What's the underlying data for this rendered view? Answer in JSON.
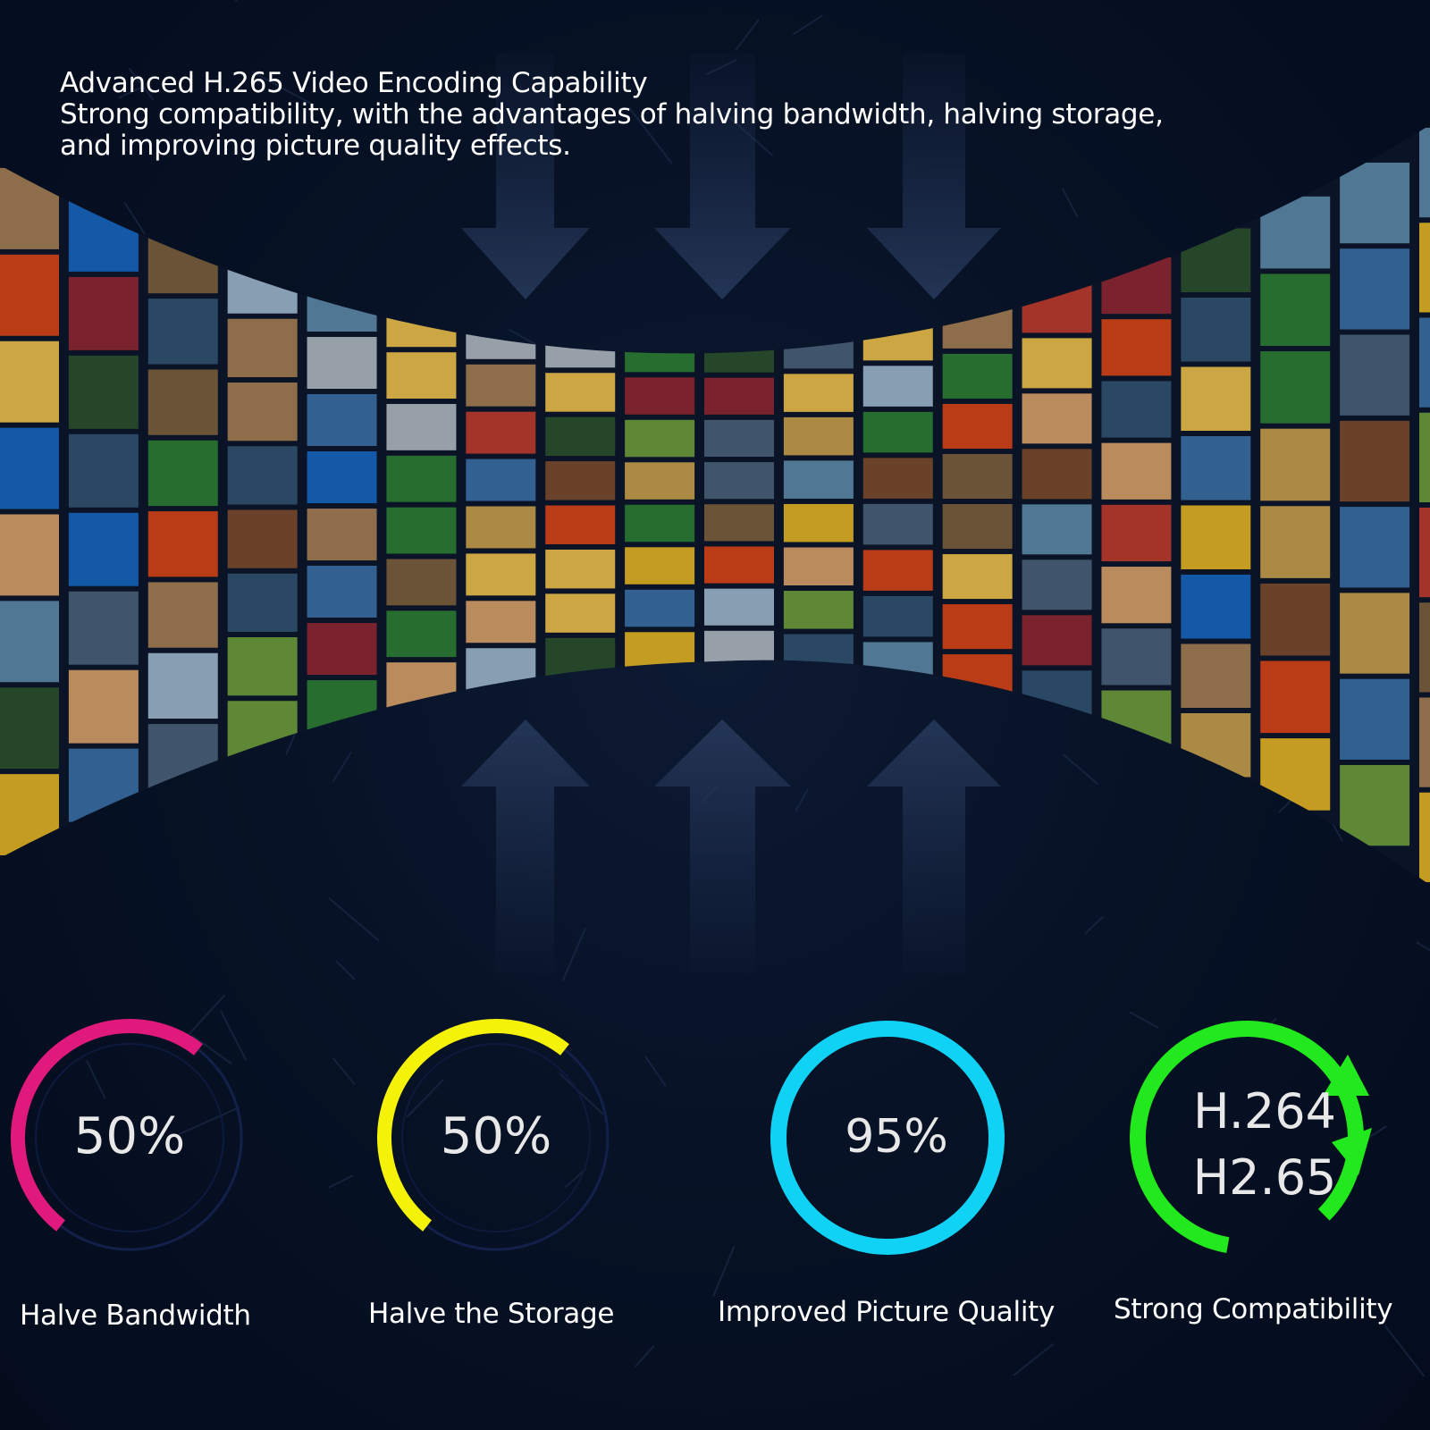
{
  "header": {
    "title": "Advanced H.265 Video Encoding Capability",
    "line2": "Strong compatibility, with the advantages of halving bandwidth, halving storage,",
    "line3": "and improving picture quality effects."
  },
  "features": [
    {
      "value": "50%",
      "label": "Halve Bandwidth",
      "color": "#e0197d",
      "fill": 0.5
    },
    {
      "value": "50%",
      "label": "Halve the Storage",
      "color": "#f5f20a",
      "fill": 0.5
    },
    {
      "value": "95%",
      "label": "Improved Picture Quality",
      "color": "#10d2f4",
      "fill": 0.95
    },
    {
      "value_line1": "H.264",
      "value_line2": "H2.65",
      "label": "Strong Compatibility",
      "color": "#22e81e"
    }
  ],
  "colors": {
    "background": "#061025",
    "track": "#12204a"
  }
}
